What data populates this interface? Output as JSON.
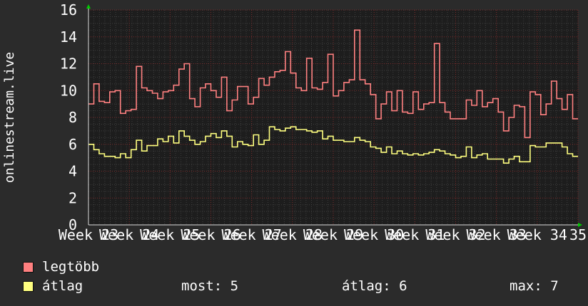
{
  "chart_data": {
    "type": "line",
    "ylabel": "onlinestream.live",
    "ylim": [
      0,
      16
    ],
    "yticks": [
      0,
      2,
      4,
      6,
      8,
      10,
      12,
      14,
      16
    ],
    "xticks": [
      "Week 23",
      "Week 24",
      "Week 25",
      "Week 26",
      "Week 27",
      "Week 28",
      "Week 29",
      "Week 30",
      "Week 31",
      "Week 32",
      "Week 33",
      "Week 34",
      "35"
    ],
    "grid": true,
    "series": [
      {
        "name": "legtöbb",
        "color": "#ff8080",
        "values": [
          9.0,
          10.5,
          9.2,
          9.1,
          9.9,
          10.0,
          8.3,
          8.5,
          8.6,
          11.8,
          10.2,
          10.0,
          9.8,
          9.4,
          9.9,
          10.0,
          10.4,
          11.6,
          12.0,
          9.4,
          8.8,
          10.2,
          10.5,
          10.0,
          9.5,
          11.0,
          8.5,
          9.3,
          10.3,
          10.3,
          9.0,
          9.5,
          10.9,
          10.4,
          11.0,
          11.4,
          11.5,
          12.9,
          11.3,
          10.2,
          10.0,
          12.4,
          10.2,
          10.1,
          10.6,
          12.7,
          9.6,
          10.0,
          10.6,
          10.8,
          14.5,
          10.8,
          10.5,
          9.7,
          7.9,
          9.0,
          9.9,
          8.5,
          10.0,
          8.4,
          8.3,
          9.9,
          8.6,
          9.0,
          9.1,
          13.5,
          9.1,
          8.4,
          7.9,
          7.9,
          7.9,
          9.3,
          8.9,
          10.0,
          8.8,
          9.1,
          9.4,
          8.4,
          7.0,
          8.0,
          8.9,
          8.8,
          6.5,
          9.9,
          9.7,
          8.2,
          9.0,
          10.7,
          9.4,
          8.6,
          9.7,
          7.9
        ]
      },
      {
        "name": "átlag",
        "color": "#ffff80",
        "values": [
          6.0,
          5.6,
          5.3,
          5.1,
          5.1,
          5.0,
          5.3,
          5.0,
          5.6,
          6.3,
          5.5,
          5.9,
          5.9,
          6.4,
          6.2,
          6.6,
          6.1,
          7.0,
          6.6,
          6.3,
          6.0,
          6.2,
          6.6,
          6.8,
          6.5,
          7.0,
          6.6,
          5.8,
          6.2,
          6.0,
          5.9,
          6.7,
          6.0,
          6.3,
          7.3,
          7.1,
          7.0,
          7.2,
          7.3,
          7.1,
          7.1,
          7.0,
          6.9,
          7.0,
          6.4,
          6.6,
          6.3,
          6.3,
          6.2,
          6.2,
          6.5,
          6.3,
          6.2,
          5.8,
          5.7,
          5.4,
          5.8,
          5.3,
          5.5,
          5.3,
          5.2,
          5.3,
          5.2,
          5.3,
          5.4,
          5.6,
          5.5,
          5.3,
          5.2,
          5.0,
          5.1,
          5.8,
          5.0,
          5.2,
          5.3,
          4.9,
          4.9,
          4.9,
          4.6,
          4.9,
          5.1,
          4.7,
          4.7,
          5.9,
          5.8,
          5.8,
          6.1,
          6.1,
          6.1,
          5.8,
          5.3,
          5.1
        ]
      }
    ]
  },
  "legend": {
    "items": [
      {
        "label": "legtöbb",
        "color": "#ff8080"
      },
      {
        "label": "átlag",
        "color": "#ffff80"
      }
    ],
    "stats": {
      "most": "most: 5",
      "atlag": "átlag: 6",
      "max": "max: 7"
    }
  }
}
